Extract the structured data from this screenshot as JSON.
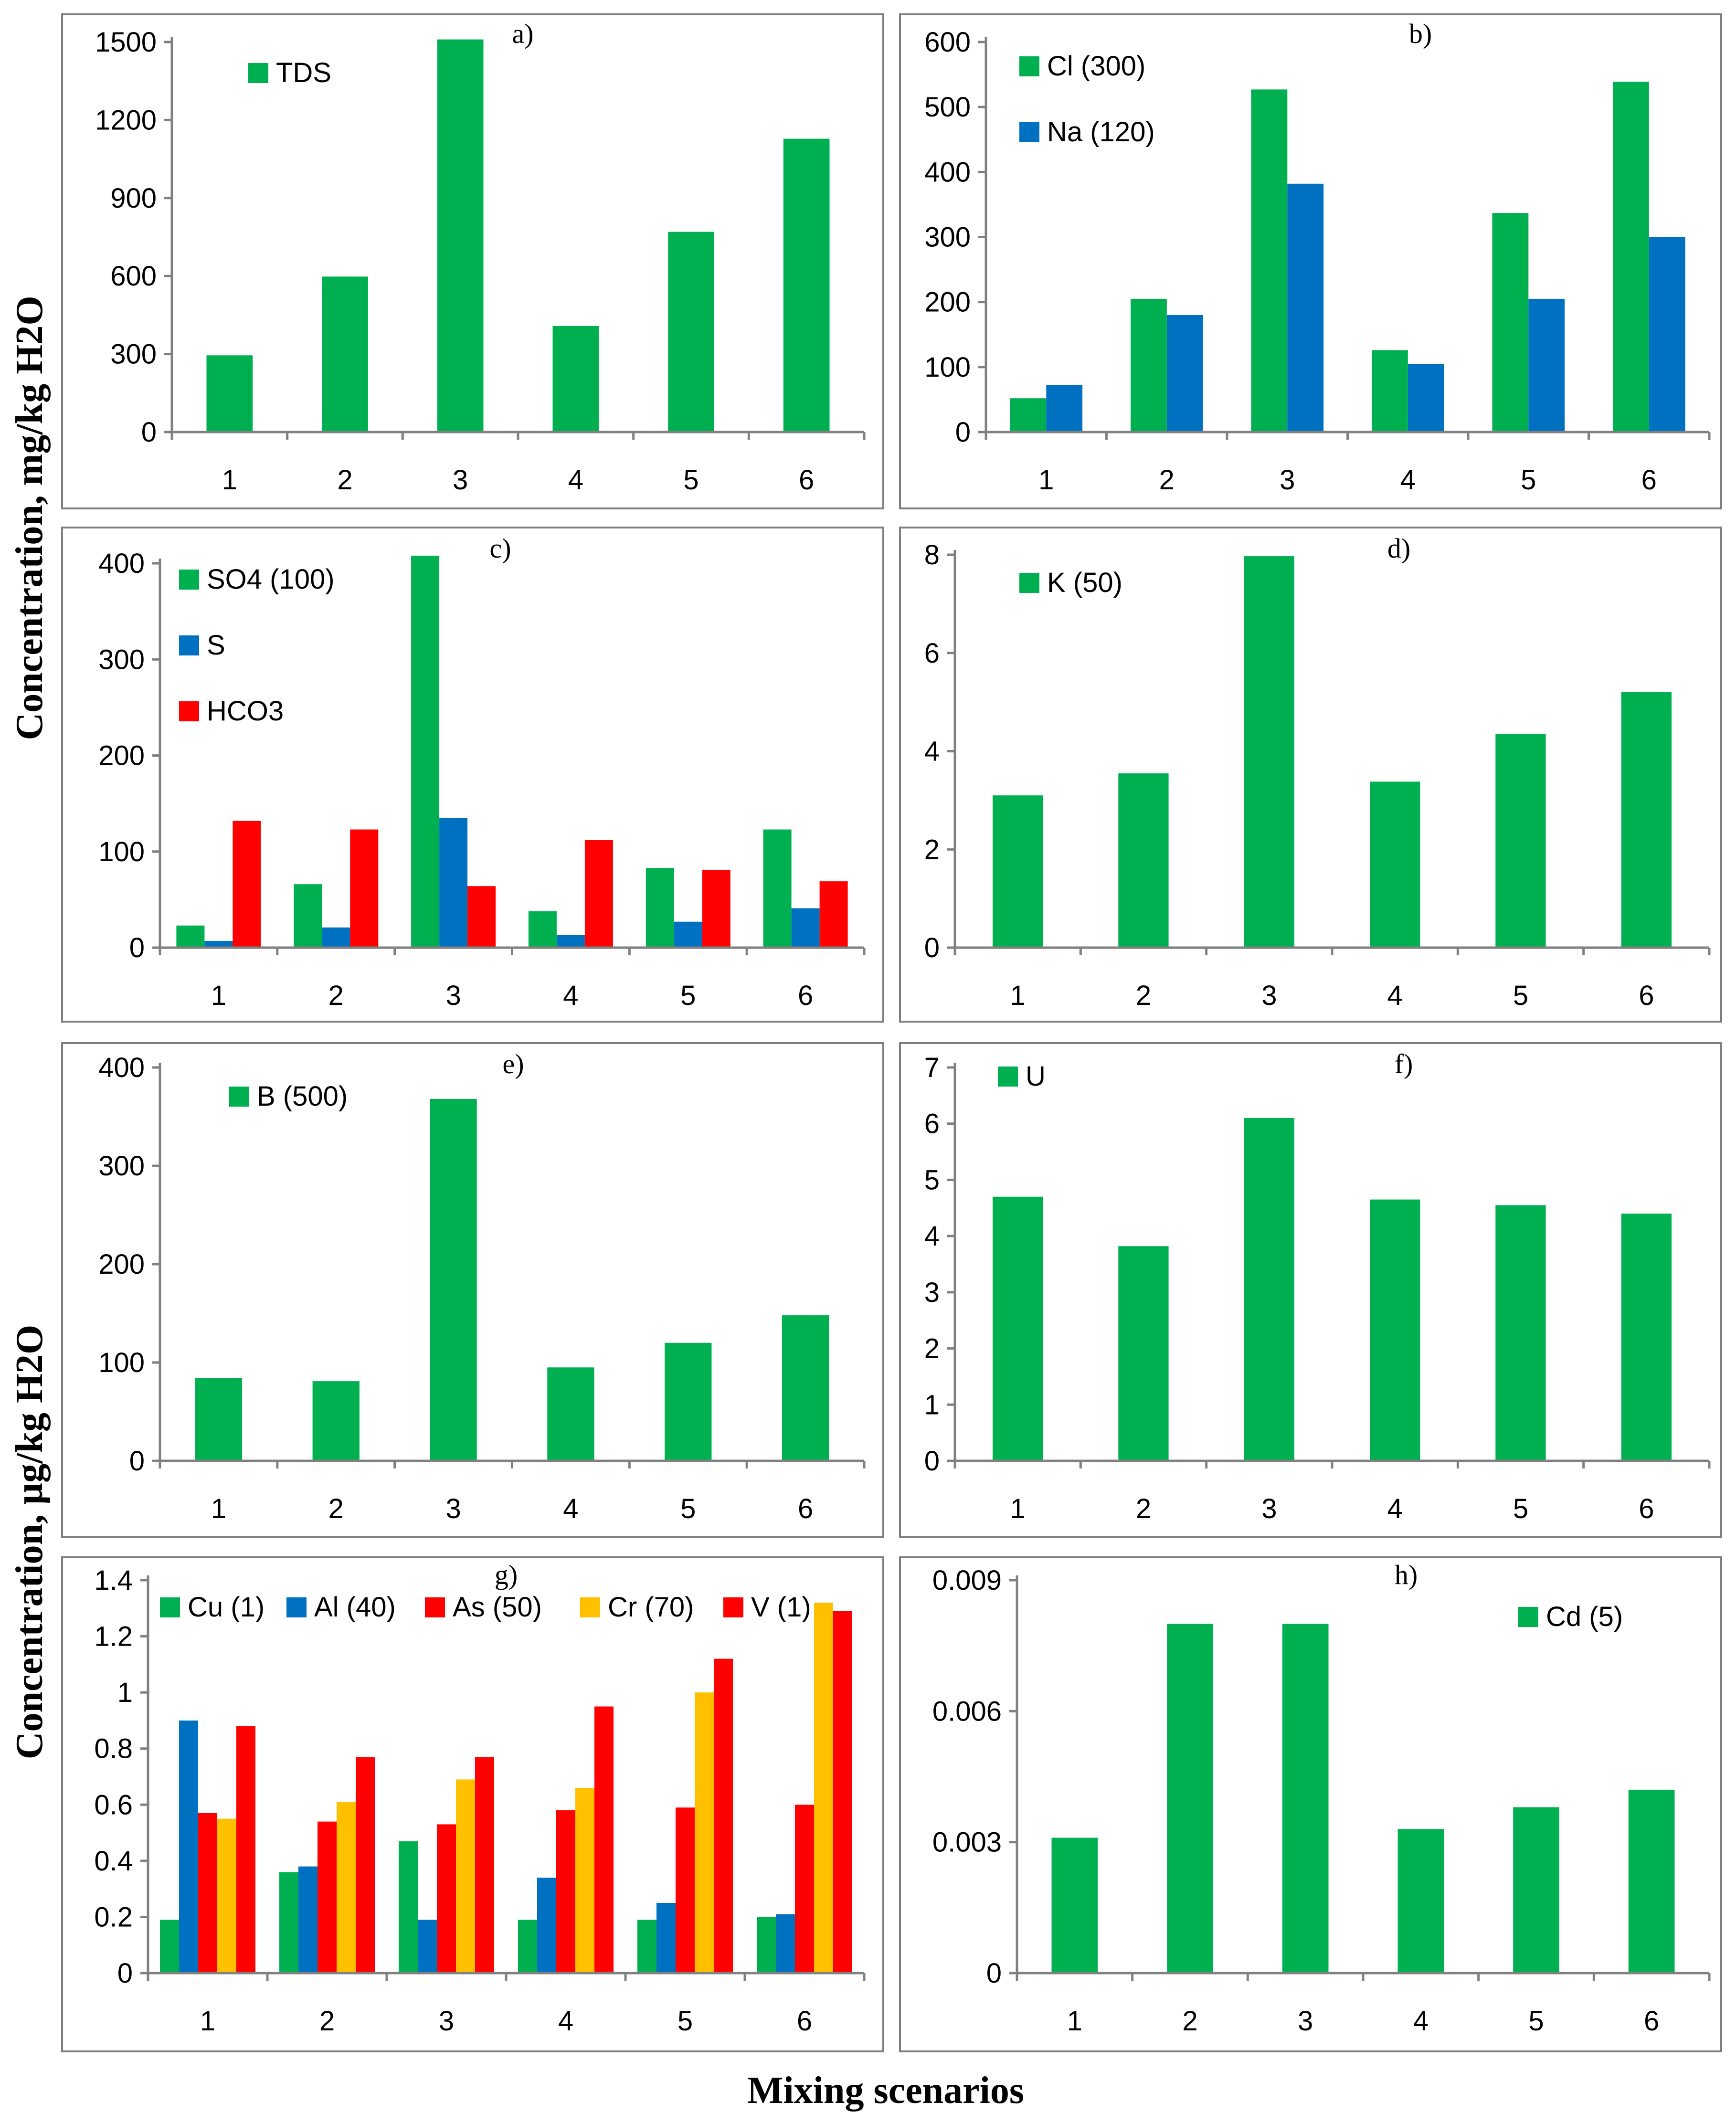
{
  "figure": {
    "ylabel_top": "Concentration, mg/kg H2O",
    "ylabel_bottom": "Concentration, µg/kg H2O",
    "xlabel": "Mixing scenarios"
  },
  "colors": {
    "green": "#00b050",
    "blue": "#0070c0",
    "red": "#ff0000",
    "orange": "#ffc000"
  },
  "chart_data": [
    {
      "tag": "a)",
      "type": "bar",
      "categories": [
        "1",
        "2",
        "3",
        "4",
        "5",
        "6"
      ],
      "ylim": [
        0,
        1500
      ],
      "yticks": [
        "0",
        "300",
        "600",
        "900",
        "1200",
        "1500"
      ],
      "legend": "top-left",
      "series": [
        {
          "name": "TDS",
          "color": "green",
          "values": [
            295,
            598,
            1510,
            408,
            770,
            1128
          ]
        }
      ]
    },
    {
      "tag": "b)",
      "type": "bar",
      "categories": [
        "1",
        "2",
        "3",
        "4",
        "5",
        "6"
      ],
      "ylim": [
        0,
        600
      ],
      "yticks": [
        "0",
        "100",
        "200",
        "300",
        "400",
        "500",
        "600"
      ],
      "legend": "top-left",
      "series": [
        {
          "name": "Cl (300)",
          "color": "green",
          "values": [
            52,
            205,
            527,
            126,
            337,
            539
          ]
        },
        {
          "name": "Na (120)",
          "color": "blue",
          "values": [
            72,
            180,
            382,
            105,
            205,
            300
          ]
        }
      ]
    },
    {
      "tag": "c)",
      "type": "bar",
      "categories": [
        "1",
        "2",
        "3",
        "4",
        "5",
        "6"
      ],
      "ylim": [
        0,
        400
      ],
      "yticks": [
        "0",
        "100",
        "200",
        "300",
        "400"
      ],
      "legend": "top-left",
      "series": [
        {
          "name": "SO4 (100)",
          "color": "green",
          "values": [
            23,
            66,
            408,
            38,
            83,
            123
          ]
        },
        {
          "name": "S",
          "color": "blue",
          "values": [
            7,
            21,
            135,
            13,
            27,
            41
          ]
        },
        {
          "name": "HCO3",
          "color": "red",
          "values": [
            132,
            123,
            64,
            112,
            81,
            69
          ]
        }
      ]
    },
    {
      "tag": "d)",
      "type": "bar",
      "categories": [
        "1",
        "2",
        "3",
        "4",
        "5",
        "6"
      ],
      "ylim": [
        0,
        8
      ],
      "yticks": [
        "0",
        "2",
        "4",
        "6",
        "8"
      ],
      "legend": "top-left",
      "series": [
        {
          "name": "K (50)",
          "color": "green",
          "values": [
            3.1,
            3.55,
            7.97,
            3.38,
            4.35,
            5.2
          ]
        }
      ]
    },
    {
      "tag": "e)",
      "type": "bar",
      "categories": [
        "1",
        "2",
        "3",
        "4",
        "5",
        "6"
      ],
      "ylim": [
        0,
        400
      ],
      "yticks": [
        "0",
        "100",
        "200",
        "300",
        "400"
      ],
      "legend": "top-left",
      "series": [
        {
          "name": "B (500)",
          "color": "green",
          "values": [
            84,
            81,
            368,
            95,
            120,
            148
          ]
        }
      ]
    },
    {
      "tag": "f)",
      "type": "bar",
      "categories": [
        "1",
        "2",
        "3",
        "4",
        "5",
        "6"
      ],
      "ylim": [
        0,
        7
      ],
      "yticks": [
        "0",
        "1",
        "2",
        "3",
        "4",
        "5",
        "6",
        "7"
      ],
      "legend": "top-left",
      "series": [
        {
          "name": "U",
          "color": "green",
          "values": [
            4.7,
            3.82,
            6.1,
            4.65,
            4.55,
            4.4
          ]
        }
      ]
    },
    {
      "tag": "g)",
      "type": "bar",
      "categories": [
        "1",
        "2",
        "3",
        "4",
        "5",
        "6"
      ],
      "ylim": [
        0,
        1.4
      ],
      "yticks": [
        "0",
        "0.2",
        "0.4",
        "0.6",
        "0.8",
        "1",
        "1.2",
        "1.4"
      ],
      "legend": "top",
      "series": [
        {
          "name": "Cu (1)",
          "color": "green",
          "values": [
            0.19,
            0.36,
            0.47,
            0.19,
            0.19,
            0.2
          ]
        },
        {
          "name": "Al (40)",
          "color": "blue",
          "values": [
            0.9,
            0.38,
            0.19,
            0.34,
            0.25,
            0.21
          ]
        },
        {
          "name": "As (50)",
          "color": "red",
          "values": [
            0.57,
            0.54,
            0.53,
            0.58,
            0.59,
            0.6
          ]
        },
        {
          "name": "Cr (70)",
          "color": "orange",
          "values": [
            0.55,
            0.61,
            0.69,
            0.66,
            1.0,
            1.32
          ]
        },
        {
          "name": "V (1)",
          "color": "red",
          "values": [
            0.88,
            0.77,
            0.77,
            0.95,
            1.12,
            1.29
          ]
        }
      ]
    },
    {
      "tag": "h)",
      "type": "bar",
      "categories": [
        "1",
        "2",
        "3",
        "4",
        "5",
        "6"
      ],
      "ylim": [
        0,
        0.009
      ],
      "yticks": [
        "0",
        "0.003",
        "0.006",
        "0.009"
      ],
      "legend": "top-right",
      "series": [
        {
          "name": "Cd (5)",
          "color": "green",
          "values": [
            0.0031,
            0.008,
            0.008,
            0.0033,
            0.0038,
            0.0042
          ]
        }
      ]
    }
  ]
}
